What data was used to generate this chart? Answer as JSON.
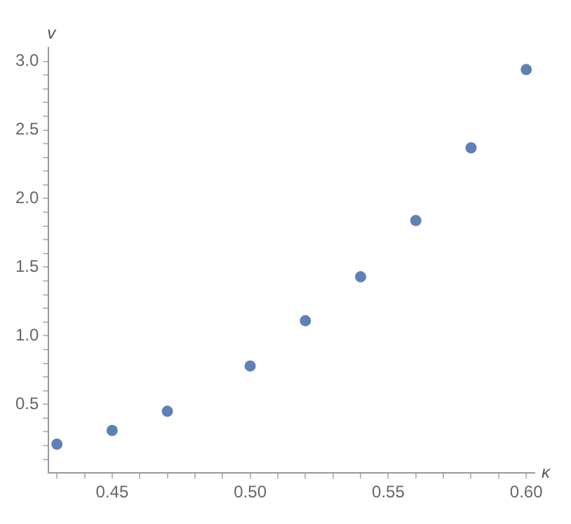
{
  "chart_data": {
    "type": "scatter",
    "xlabel": "κ",
    "ylabel": "v",
    "x": [
      0.43,
      0.45,
      0.47,
      0.5,
      0.52,
      0.54,
      0.56,
      0.58,
      0.6
    ],
    "values": [
      0.21,
      0.31,
      0.45,
      0.78,
      1.11,
      1.43,
      1.84,
      2.37,
      2.94
    ],
    "color": "#5e81b5",
    "marker": "circle",
    "grid": false,
    "xlim": [
      0.427,
      0.603
    ],
    "xticks": [
      {
        "value": 0.43,
        "label": null
      },
      {
        "value": 0.44,
        "label": null
      },
      {
        "value": 0.45,
        "label": "0.45"
      },
      {
        "value": 0.46,
        "label": null
      },
      {
        "value": 0.47,
        "label": null
      },
      {
        "value": 0.48,
        "label": null
      },
      {
        "value": 0.49,
        "label": null
      },
      {
        "value": 0.5,
        "label": "0.50"
      },
      {
        "value": 0.51,
        "label": null
      },
      {
        "value": 0.52,
        "label": null
      },
      {
        "value": 0.53,
        "label": null
      },
      {
        "value": 0.54,
        "label": null
      },
      {
        "value": 0.55,
        "label": "0.55"
      },
      {
        "value": 0.56,
        "label": null
      },
      {
        "value": 0.57,
        "label": null
      },
      {
        "value": 0.58,
        "label": null
      },
      {
        "value": 0.59,
        "label": null
      },
      {
        "value": 0.6,
        "label": "0.60"
      }
    ],
    "ylim": [
      0,
      3.1
    ],
    "yticks": [
      {
        "value": 0.1,
        "label": null
      },
      {
        "value": 0.2,
        "label": null
      },
      {
        "value": 0.3,
        "label": null
      },
      {
        "value": 0.4,
        "label": null
      },
      {
        "value": 0.5,
        "label": "0.5"
      },
      {
        "value": 0.6,
        "label": null
      },
      {
        "value": 0.7,
        "label": null
      },
      {
        "value": 0.8,
        "label": null
      },
      {
        "value": 0.9,
        "label": null
      },
      {
        "value": 1,
        "label": "1.0"
      },
      {
        "value": 1.1,
        "label": null
      },
      {
        "value": 1.2,
        "label": null
      },
      {
        "value": 1.3,
        "label": null
      },
      {
        "value": 1.4,
        "label": null
      },
      {
        "value": 1.5,
        "label": "1.5"
      },
      {
        "value": 1.6,
        "label": null
      },
      {
        "value": 1.7,
        "label": null
      },
      {
        "value": 1.8,
        "label": null
      },
      {
        "value": 1.9,
        "label": null
      },
      {
        "value": 2,
        "label": "2.0"
      },
      {
        "value": 2.1,
        "label": null
      },
      {
        "value": 2.2,
        "label": null
      },
      {
        "value": 2.3,
        "label": null
      },
      {
        "value": 2.4,
        "label": null
      },
      {
        "value": 2.5,
        "label": "2.5"
      },
      {
        "value": 2.6,
        "label": null
      },
      {
        "value": 2.7,
        "label": null
      },
      {
        "value": 2.8,
        "label": null
      },
      {
        "value": 2.9,
        "label": null
      },
      {
        "value": 3,
        "label": "3.0"
      }
    ]
  }
}
